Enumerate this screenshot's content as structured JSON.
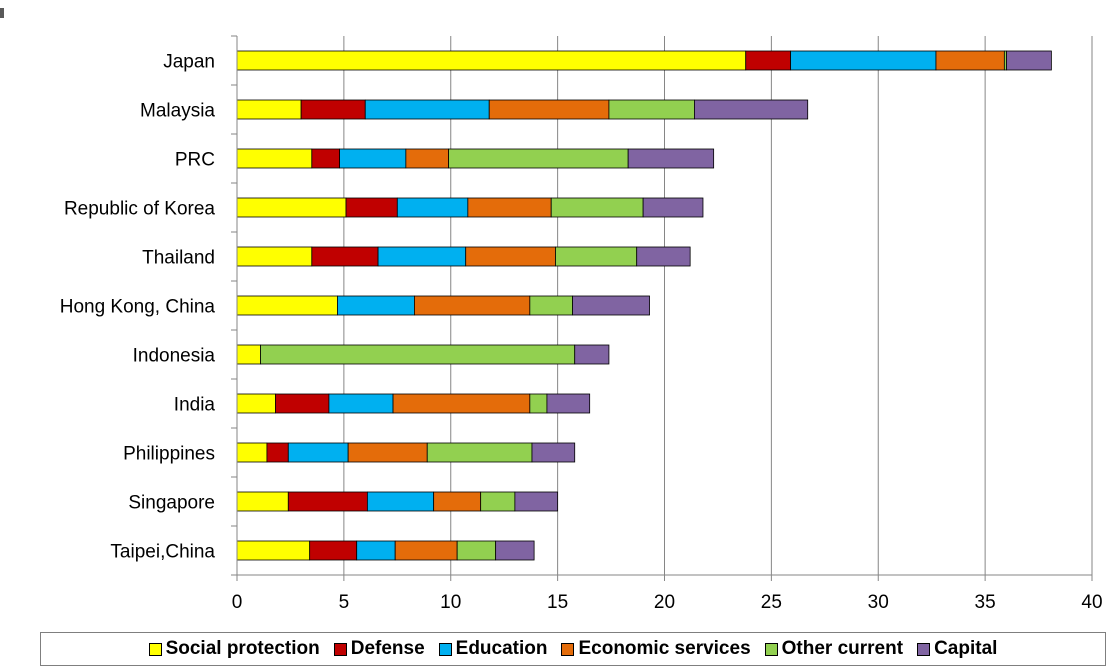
{
  "chart_data": {
    "type": "bar",
    "orientation": "horizontal",
    "stacked": true,
    "categories": [
      "Japan",
      "Malaysia",
      "PRC",
      "Republic of Korea",
      "Thailand",
      "Hong Kong, China",
      "Indonesia",
      "India",
      "Philippines",
      "Singapore",
      "Taipei,China"
    ],
    "series": [
      {
        "name": "Social protection",
        "color": "#ffff00",
        "values": [
          23.8,
          3.0,
          3.5,
          5.1,
          3.5,
          4.7,
          1.1,
          1.8,
          1.4,
          2.4,
          3.4
        ]
      },
      {
        "name": "Defense",
        "color": "#c00000",
        "values": [
          2.1,
          3.0,
          1.3,
          2.4,
          3.1,
          0,
          0,
          2.5,
          1.0,
          3.7,
          2.2
        ]
      },
      {
        "name": "Education",
        "color": "#00b0f0",
        "values": [
          6.8,
          5.8,
          3.1,
          3.3,
          4.1,
          3.6,
          0,
          3.0,
          2.8,
          3.1,
          1.8
        ]
      },
      {
        "name": "Economic services",
        "color": "#e46c0a",
        "values": [
          3.2,
          5.6,
          2.0,
          3.9,
          4.2,
          5.4,
          0,
          6.4,
          3.7,
          2.2,
          2.9
        ]
      },
      {
        "name": "Other current",
        "color": "#92d050",
        "values": [
          0.1,
          4.0,
          8.4,
          4.3,
          3.8,
          2.0,
          14.7,
          0.8,
          4.9,
          1.6,
          1.8
        ]
      },
      {
        "name": "Capital",
        "color": "#8064a2",
        "values": [
          2.1,
          5.3,
          4.0,
          2.8,
          2.5,
          3.6,
          1.6,
          2.0,
          2.0,
          2.0,
          1.8
        ]
      }
    ],
    "xlim": [
      0,
      40
    ],
    "xticks": [
      "0",
      "5",
      "10",
      "15",
      "20",
      "25",
      "30",
      "35",
      "40"
    ],
    "grid": true,
    "legend_position": "bottom"
  }
}
